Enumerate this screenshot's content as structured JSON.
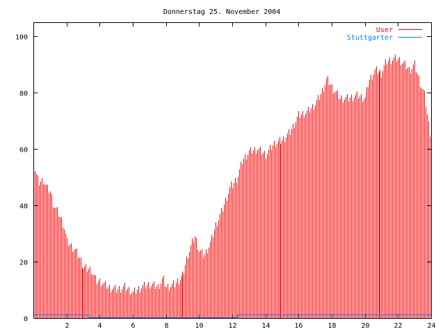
{
  "chart_data": {
    "type": "bar",
    "title": "Donnerstag 25. November 2004",
    "xlabel": "",
    "ylabel": "",
    "xlim": [
      0,
      24
    ],
    "ylim": [
      0,
      105
    ],
    "xticks": [
      "2",
      "4",
      "6",
      "8",
      "10",
      "12",
      "14",
      "16",
      "18",
      "20",
      "22",
      "24"
    ],
    "yticks": [
      "0",
      "20",
      "40",
      "60",
      "80",
      "100"
    ],
    "grid": false,
    "legend_position": "top-right",
    "bar_interval_hours": 0.08333,
    "series": [
      {
        "name": "User",
        "style": "impulses",
        "color": "#ff0000",
        "x": [
          0,
          0.1,
          0.3,
          0.6,
          0.8,
          1.0,
          1.2,
          1.5,
          1.8,
          2.0,
          2.5,
          2.8,
          3.0,
          3.5,
          3.8,
          4.0,
          4.5,
          5.0,
          5.5,
          6.0,
          6.5,
          7.0,
          7.5,
          7.8,
          8.0,
          8.5,
          9.0,
          9.3,
          9.6,
          9.75,
          10.0,
          10.3,
          10.7,
          11.0,
          11.3,
          11.6,
          11.9,
          12.0,
          12.3,
          12.6,
          13.0,
          13.5,
          14.0,
          14.5,
          15.0,
          15.5,
          16.0,
          16.5,
          17.0,
          17.3,
          17.7,
          18.0,
          18.5,
          19.0,
          19.5,
          20.0,
          20.2,
          20.6,
          21.0,
          21.3,
          21.7,
          22.0,
          22.4,
          22.7,
          23.0,
          23.3,
          23.6,
          23.8,
          24.0
        ],
        "y": [
          56,
          52,
          48,
          49,
          46,
          45,
          40,
          37,
          33,
          27,
          24,
          21,
          18,
          17,
          13,
          13,
          11,
          10,
          11,
          9,
          11,
          12,
          11,
          14,
          11,
          12,
          15,
          22,
          27,
          29,
          24,
          22,
          27,
          33,
          37,
          42,
          47,
          47,
          50,
          56,
          59,
          60,
          58,
          62,
          63,
          66,
          72,
          73,
          76,
          79,
          85,
          82,
          78,
          78,
          79,
          78,
          84,
          88,
          87,
          91,
          92,
          92,
          90,
          88,
          90,
          84,
          79,
          70,
          63
        ]
      },
      {
        "name": "Stuttgarter",
        "style": "steps",
        "color": "#0080ff",
        "x": [
          0,
          3.35,
          3.35,
          12.3,
          12.3,
          24
        ],
        "y": [
          1,
          1,
          0,
          0,
          1,
          1
        ]
      }
    ]
  }
}
